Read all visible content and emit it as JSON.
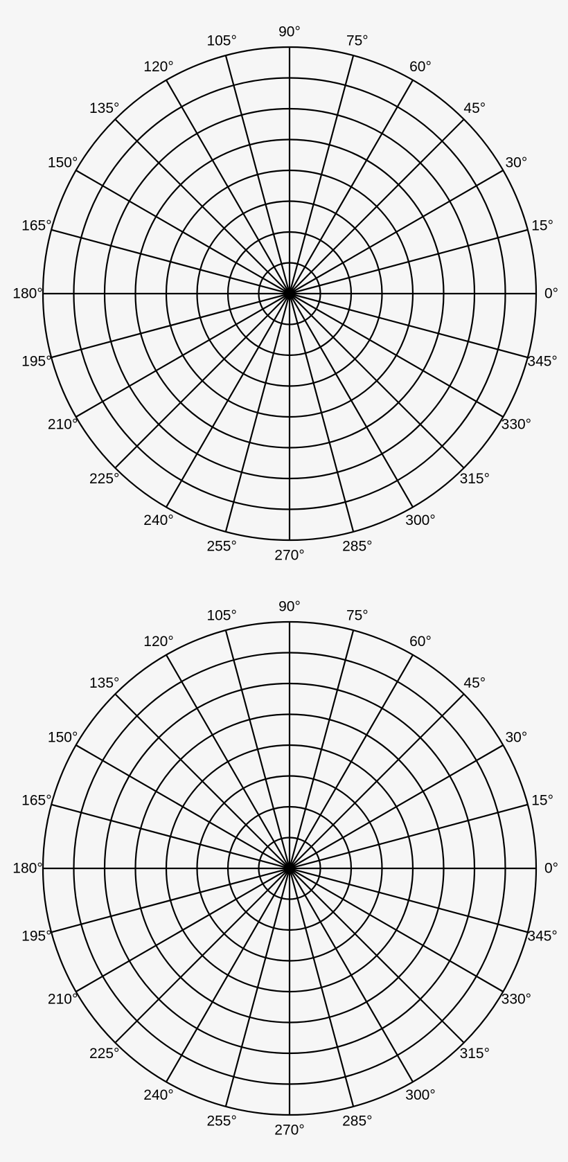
{
  "page": {
    "background": "#f6f6f6",
    "line_color": "#000000"
  },
  "polar_grids": [
    {
      "ring_count": 8,
      "spoke_step_degrees": 15,
      "angle_labels": [
        "0°",
        "15°",
        "30°",
        "45°",
        "60°",
        "75°",
        "90°",
        "105°",
        "120°",
        "135°",
        "150°",
        "165°",
        "180°",
        "195°",
        "210°",
        "225°",
        "240°",
        "255°",
        "270°",
        "285°",
        "300°",
        "315°",
        "330°",
        "345°"
      ]
    },
    {
      "ring_count": 8,
      "spoke_step_degrees": 15,
      "angle_labels": [
        "0°",
        "15°",
        "30°",
        "45°",
        "60°",
        "75°",
        "90°",
        "105°",
        "120°",
        "135°",
        "150°",
        "165°",
        "180°",
        "195°",
        "210°",
        "225°",
        "240°",
        "255°",
        "270°",
        "285°",
        "300°",
        "315°",
        "330°",
        "345°"
      ]
    }
  ]
}
